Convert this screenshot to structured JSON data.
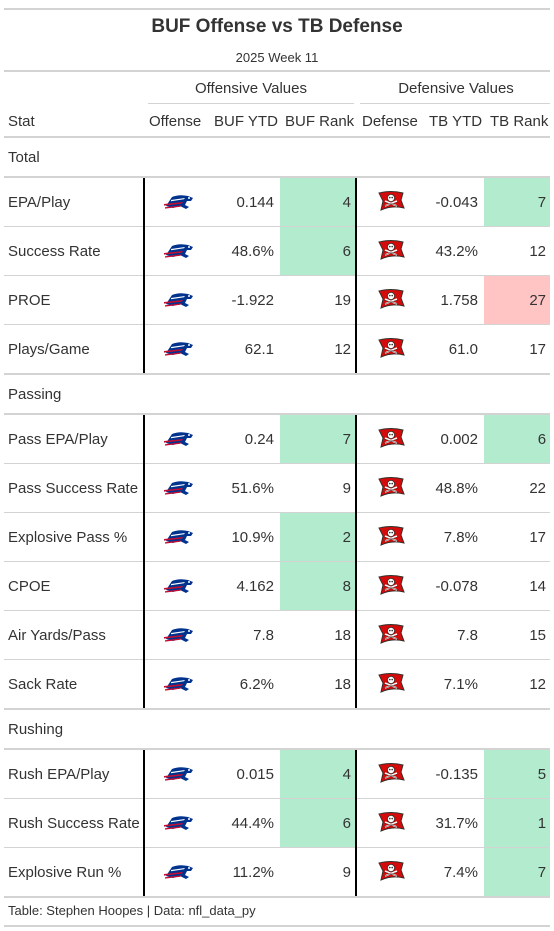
{
  "title": "BUF Offense vs TB Defense",
  "subtitle": "2025 Week 11",
  "spanners": {
    "offense": "Offensive Values",
    "defense": "Defensive Values"
  },
  "columns": {
    "stat": "Stat",
    "offense": "Offense",
    "off_ytd": "BUF YTD",
    "off_rank": "BUF Rank",
    "defense": "Defense",
    "def_ytd": "TB YTD",
    "def_rank": "TB Rank"
  },
  "colors": {
    "good": "#b3ebce",
    "bad": "#ffc4c4",
    "buf_blue": "#00338d",
    "buf_red": "#c60c30",
    "tb_red": "#d50a0a",
    "tb_pewter": "#34302b"
  },
  "icons": {
    "offense_logo": "bills-logo-icon",
    "defense_logo": "buccaneers-flag-icon"
  },
  "chart_data": {
    "type": "table",
    "groups": [
      {
        "name": "Total",
        "rows": [
          {
            "stat": "EPA/Play",
            "off_ytd": "0.144",
            "off_rank": "4",
            "off_flag": "good",
            "def_ytd": "-0.043",
            "def_rank": "7",
            "def_flag": "good"
          },
          {
            "stat": "Success Rate",
            "off_ytd": "48.6%",
            "off_rank": "6",
            "off_flag": "good",
            "def_ytd": "43.2%",
            "def_rank": "12",
            "def_flag": ""
          },
          {
            "stat": "PROE",
            "off_ytd": "-1.922",
            "off_rank": "19",
            "off_flag": "",
            "def_ytd": "1.758",
            "def_rank": "27",
            "def_flag": "bad"
          },
          {
            "stat": "Plays/Game",
            "off_ytd": "62.1",
            "off_rank": "12",
            "off_flag": "",
            "def_ytd": "61.0",
            "def_rank": "17",
            "def_flag": ""
          }
        ]
      },
      {
        "name": "Passing",
        "rows": [
          {
            "stat": "Pass EPA/Play",
            "off_ytd": "0.24",
            "off_rank": "7",
            "off_flag": "good",
            "def_ytd": "0.002",
            "def_rank": "6",
            "def_flag": "good"
          },
          {
            "stat": "Pass Success Rate",
            "off_ytd": "51.6%",
            "off_rank": "9",
            "off_flag": "",
            "def_ytd": "48.8%",
            "def_rank": "22",
            "def_flag": ""
          },
          {
            "stat": "Explosive Pass %",
            "off_ytd": "10.9%",
            "off_rank": "2",
            "off_flag": "good",
            "def_ytd": "7.8%",
            "def_rank": "17",
            "def_flag": ""
          },
          {
            "stat": "CPOE",
            "off_ytd": "4.162",
            "off_rank": "8",
            "off_flag": "good",
            "def_ytd": "-0.078",
            "def_rank": "14",
            "def_flag": ""
          },
          {
            "stat": "Air Yards/Pass",
            "off_ytd": "7.8",
            "off_rank": "18",
            "off_flag": "",
            "def_ytd": "7.8",
            "def_rank": "15",
            "def_flag": ""
          },
          {
            "stat": "Sack Rate",
            "off_ytd": "6.2%",
            "off_rank": "18",
            "off_flag": "",
            "def_ytd": "7.1%",
            "def_rank": "12",
            "def_flag": ""
          }
        ]
      },
      {
        "name": "Rushing",
        "rows": [
          {
            "stat": "Rush EPA/Play",
            "off_ytd": "0.015",
            "off_rank": "4",
            "off_flag": "good",
            "def_ytd": "-0.135",
            "def_rank": "5",
            "def_flag": "good"
          },
          {
            "stat": "Rush Success Rate",
            "off_ytd": "44.4%",
            "off_rank": "6",
            "off_flag": "good",
            "def_ytd": "31.7%",
            "def_rank": "1",
            "def_flag": "good"
          },
          {
            "stat": "Explosive Run %",
            "off_ytd": "11.2%",
            "off_rank": "9",
            "off_flag": "",
            "def_ytd": "7.4%",
            "def_rank": "7",
            "def_flag": "good"
          }
        ]
      }
    ]
  },
  "footer": "Table: Stephen Hoopes | Data: nfl_data_py"
}
